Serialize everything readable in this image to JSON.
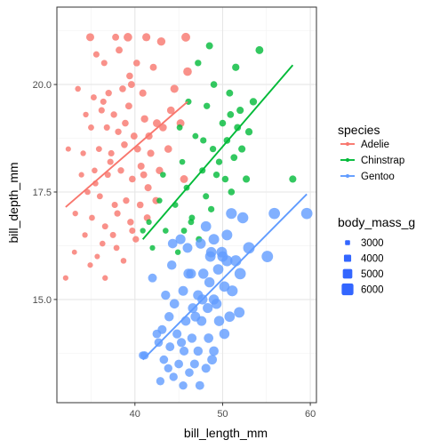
{
  "chart_data": {
    "type": "scatter",
    "xlabel": "bill_length_mm",
    "ylabel": "bill_depth_mm",
    "xlim": [
      31.1,
      60.7
    ],
    "ylim": [
      12.6,
      21.8
    ],
    "x_ticks": [
      40,
      50,
      60
    ],
    "y_ticks": [
      15.0,
      17.5,
      20.0
    ],
    "x_tick_labels": [
      "40",
      "50",
      "60"
    ],
    "y_tick_labels": [
      "15.0",
      "17.5",
      "20.0"
    ],
    "grid": true,
    "legend_placement": "right",
    "color_legend": {
      "title": "species",
      "entries": [
        "Adelie",
        "Chinstrap",
        "Gentoo"
      ]
    },
    "size_legend": {
      "title": "body_mass_g",
      "entries": [
        "3000",
        "4000",
        "5000",
        "6000"
      ],
      "values": [
        3000,
        4000,
        5000,
        6000
      ]
    },
    "colors": {
      "Adelie": "#F8766D",
      "Chinstrap": "#00BA38",
      "Gentoo": "#619CFF",
      "size_legend": "#3366FF"
    },
    "trend_lines": [
      {
        "name": "Adelie",
        "x": [
          32.1,
          46.0
        ],
        "y": [
          17.15,
          19.6
        ]
      },
      {
        "name": "Chinstrap",
        "x": [
          40.9,
          58.0
        ],
        "y": [
          16.4,
          20.45
        ]
      },
      {
        "name": "Gentoo",
        "x": [
          40.9,
          59.6
        ],
        "y": [
          13.6,
          17.45
        ]
      }
    ],
    "series": [
      {
        "name": "Adelie",
        "points": [
          [
            34.9,
            21.1,
            4350
          ],
          [
            37.8,
            21.1,
            3900
          ],
          [
            39.2,
            21.1,
            4600
          ],
          [
            41.3,
            21.1,
            4400
          ],
          [
            43.0,
            21.0,
            4500
          ],
          [
            45.8,
            21.1,
            4700
          ],
          [
            35.6,
            20.7,
            3600
          ],
          [
            38.2,
            20.8,
            3900
          ],
          [
            36.5,
            20.5,
            3600
          ],
          [
            40.2,
            20.5,
            3800
          ],
          [
            42.1,
            20.4,
            3900
          ],
          [
            33.5,
            19.9,
            3400
          ],
          [
            35.3,
            19.7,
            3500
          ],
          [
            37.0,
            19.8,
            3700
          ],
          [
            38.6,
            19.9,
            3800
          ],
          [
            39.6,
            20.0,
            3900
          ],
          [
            40.9,
            19.8,
            4000
          ],
          [
            44.5,
            19.9,
            4400
          ],
          [
            46.0,
            20.3,
            4600
          ],
          [
            34.4,
            19.3,
            3300
          ],
          [
            36.2,
            19.4,
            3600
          ],
          [
            37.6,
            19.3,
            3700
          ],
          [
            39.3,
            19.5,
            3900
          ],
          [
            41.1,
            19.2,
            4100
          ],
          [
            42.5,
            19.1,
            4300
          ],
          [
            44.1,
            19.4,
            4200
          ],
          [
            35.0,
            19.0,
            3500
          ],
          [
            36.8,
            19.0,
            3600
          ],
          [
            38.1,
            18.9,
            3700
          ],
          [
            39.9,
            18.8,
            3900
          ],
          [
            41.6,
            18.8,
            4050
          ],
          [
            43.2,
            19.0,
            4200
          ],
          [
            45.2,
            19.1,
            4300
          ],
          [
            32.4,
            18.5,
            3200
          ],
          [
            34.1,
            18.4,
            3300
          ],
          [
            35.9,
            18.5,
            3500
          ],
          [
            37.3,
            18.4,
            3600
          ],
          [
            38.8,
            18.6,
            3800
          ],
          [
            40.3,
            18.5,
            3900
          ],
          [
            41.8,
            18.4,
            4000
          ],
          [
            43.8,
            18.5,
            4200
          ],
          [
            33.9,
            17.9,
            3250
          ],
          [
            35.4,
            18.0,
            3400
          ],
          [
            36.9,
            17.9,
            3550
          ],
          [
            38.4,
            18.0,
            3700
          ],
          [
            39.7,
            17.8,
            3800
          ],
          [
            41.0,
            17.9,
            3900
          ],
          [
            42.8,
            18.0,
            4100
          ],
          [
            45.6,
            17.8,
            4300
          ],
          [
            34.6,
            17.5,
            3400
          ],
          [
            36.0,
            17.4,
            3500
          ],
          [
            37.7,
            17.2,
            3600
          ],
          [
            39.0,
            17.3,
            3700
          ],
          [
            40.6,
            17.2,
            3800
          ],
          [
            42.4,
            17.3,
            4000
          ],
          [
            33.2,
            17.0,
            3300
          ],
          [
            35.1,
            16.9,
            3450
          ],
          [
            36.6,
            16.7,
            3550
          ],
          [
            38.0,
            17.0,
            3650
          ],
          [
            39.5,
            16.8,
            3750
          ],
          [
            41.4,
            16.9,
            3900
          ],
          [
            34.3,
            16.5,
            3300
          ],
          [
            36.3,
            16.3,
            3400
          ],
          [
            37.9,
            16.2,
            3500
          ],
          [
            40.1,
            16.4,
            3700
          ],
          [
            33.1,
            16.1,
            3100
          ],
          [
            35.7,
            16.0,
            3200
          ],
          [
            38.7,
            15.9,
            3400
          ],
          [
            34.9,
            15.8,
            3250
          ],
          [
            36.6,
            15.5,
            3300
          ],
          [
            32.1,
            15.5,
            3250
          ],
          [
            39.7,
            16.6,
            3600
          ],
          [
            35.5,
            17.7,
            3450
          ],
          [
            37.2,
            18.2,
            3600
          ],
          [
            38.9,
            19.1,
            3800
          ],
          [
            40.7,
            18.1,
            3950
          ],
          [
            36.4,
            19.6,
            3600
          ],
          [
            39.4,
            20.2,
            3800
          ],
          [
            37.5,
            16.5,
            3550
          ],
          [
            41.5,
            17.6,
            4000
          ]
        ]
      },
      {
        "name": "Chinstrap",
        "points": [
          [
            48.5,
            20.9,
            3950
          ],
          [
            51.5,
            20.4,
            4050
          ],
          [
            54.2,
            20.8,
            4300
          ],
          [
            47.2,
            20.5,
            3700
          ],
          [
            49.0,
            20.0,
            3800
          ],
          [
            50.8,
            19.8,
            3900
          ],
          [
            52.0,
            19.4,
            4000
          ],
          [
            46.1,
            19.6,
            3600
          ],
          [
            48.2,
            19.5,
            3700
          ],
          [
            50.0,
            19.1,
            3800
          ],
          [
            51.7,
            19.0,
            3900
          ],
          [
            53.5,
            19.6,
            4100
          ],
          [
            46.9,
            18.8,
            3500
          ],
          [
            48.9,
            18.5,
            3700
          ],
          [
            50.5,
            18.7,
            3800
          ],
          [
            52.2,
            18.5,
            4000
          ],
          [
            45.4,
            18.2,
            3400
          ],
          [
            47.7,
            18.0,
            3600
          ],
          [
            49.6,
            18.2,
            3700
          ],
          [
            51.3,
            18.3,
            3850
          ],
          [
            43.2,
            17.9,
            3400
          ],
          [
            45.9,
            17.6,
            3500
          ],
          [
            48.1,
            17.4,
            3600
          ],
          [
            50.3,
            17.8,
            3750
          ],
          [
            52.7,
            17.8,
            4000
          ],
          [
            42.8,
            17.3,
            3350
          ],
          [
            44.6,
            17.2,
            3450
          ],
          [
            46.5,
            16.9,
            3550
          ],
          [
            48.7,
            17.1,
            3650
          ],
          [
            51.0,
            17.5,
            3800
          ],
          [
            41.6,
            16.8,
            3300
          ],
          [
            43.5,
            16.6,
            3400
          ],
          [
            45.6,
            16.6,
            3500
          ],
          [
            47.3,
            16.4,
            3600
          ],
          [
            42.0,
            16.2,
            3250
          ],
          [
            44.9,
            16.1,
            3350
          ],
          [
            40.9,
            16.6,
            3300
          ],
          [
            46.4,
            16.8,
            3500
          ],
          [
            49.3,
            17.9,
            3700
          ],
          [
            58.0,
            17.8,
            4000
          ],
          [
            50.9,
            19.3,
            3850
          ],
          [
            47.8,
            18.7,
            3650
          ],
          [
            53.0,
            18.9,
            4050
          ],
          [
            45.1,
            19.0,
            3500
          ]
        ]
      },
      {
        "name": "Gentoo",
        "points": [
          [
            51.0,
            17.0,
            5600
          ],
          [
            52.3,
            16.9,
            5700
          ],
          [
            50.5,
            16.5,
            5500
          ],
          [
            49.0,
            16.4,
            5500
          ],
          [
            47.5,
            16.3,
            5300
          ],
          [
            48.7,
            16.1,
            5400
          ],
          [
            50.0,
            16.0,
            5500
          ],
          [
            51.5,
            15.9,
            5700
          ],
          [
            49.5,
            15.7,
            5400
          ],
          [
            47.8,
            15.6,
            5300
          ],
          [
            46.1,
            15.6,
            5200
          ],
          [
            48.5,
            15.4,
            5300
          ],
          [
            50.2,
            15.3,
            5400
          ],
          [
            45.5,
            15.2,
            5100
          ],
          [
            47.2,
            15.1,
            5200
          ],
          [
            49.0,
            15.0,
            5300
          ],
          [
            44.5,
            14.9,
            5000
          ],
          [
            46.6,
            14.8,
            5100
          ],
          [
            48.3,
            14.8,
            5200
          ],
          [
            43.9,
            14.6,
            4900
          ],
          [
            45.8,
            14.5,
            5000
          ],
          [
            47.6,
            14.5,
            5100
          ],
          [
            49.6,
            14.5,
            5300
          ],
          [
            43.1,
            14.3,
            4750
          ],
          [
            44.8,
            14.2,
            4800
          ],
          [
            46.5,
            14.1,
            4900
          ],
          [
            48.4,
            14.1,
            5000
          ],
          [
            42.7,
            14.0,
            4600
          ],
          [
            44.0,
            13.9,
            4700
          ],
          [
            45.6,
            13.8,
            4800
          ],
          [
            47.2,
            13.8,
            4900
          ],
          [
            49.0,
            13.8,
            5000
          ],
          [
            41.1,
            13.7,
            4500
          ],
          [
            43.3,
            13.6,
            4600
          ],
          [
            45.0,
            13.5,
            4650
          ],
          [
            46.8,
            13.5,
            4750
          ],
          [
            43.8,
            13.4,
            4500
          ],
          [
            46.2,
            13.3,
            4600
          ],
          [
            48.1,
            13.4,
            4800
          ],
          [
            44.4,
            13.2,
            4500
          ],
          [
            42.9,
            13.1,
            4450
          ],
          [
            45.5,
            13.0,
            4500
          ],
          [
            47.4,
            13.0,
            4700
          ],
          [
            40.9,
            13.7,
            4400
          ],
          [
            42.5,
            14.2,
            4650
          ],
          [
            44.2,
            15.8,
            4950
          ],
          [
            46.0,
            16.2,
            5100
          ],
          [
            43.5,
            15.1,
            4850
          ],
          [
            50.8,
            14.6,
            5400
          ],
          [
            51.1,
            15.2,
            5600
          ],
          [
            52.0,
            15.6,
            5800
          ],
          [
            53.0,
            16.2,
            5900
          ],
          [
            55.1,
            16.0,
            5850
          ],
          [
            59.6,
            17.0,
            5800
          ],
          [
            55.9,
            17.0,
            5800
          ],
          [
            49.9,
            16.1,
            5500
          ],
          [
            48.1,
            16.7,
            5400
          ],
          [
            45.2,
            16.4,
            5200
          ],
          [
            50.5,
            15.9,
            5650
          ],
          [
            51.9,
            14.7,
            5500
          ],
          [
            46.9,
            14.6,
            5100
          ],
          [
            49.3,
            14.9,
            5350
          ],
          [
            47.7,
            15.0,
            5250
          ],
          [
            48.6,
            16.0,
            5450
          ],
          [
            42.0,
            15.5,
            4700
          ],
          [
            44.3,
            16.3,
            5000
          ],
          [
            46.4,
            15.6,
            5150
          ],
          [
            50.2,
            14.2,
            5300
          ],
          [
            48.8,
            13.6,
            5050
          ],
          [
            45.3,
            14.0,
            4800
          ]
        ]
      }
    ]
  }
}
